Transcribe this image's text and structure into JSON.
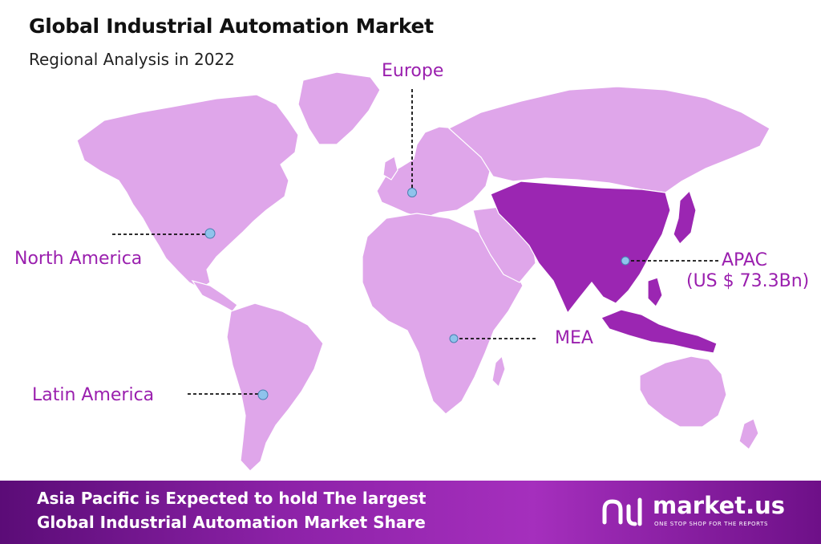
{
  "header": {
    "title": "Global Industrial Automation Market",
    "subtitle": "Regional Analysis in 2022"
  },
  "colors": {
    "land": "#dfa6ea",
    "highlight": "#9b26b2",
    "marker": "#8fc3ec",
    "label": "#9a1fae",
    "footer_bg": "#8d22a8"
  },
  "regions": {
    "europe": {
      "label": "Europe"
    },
    "north_america": {
      "label": "North America"
    },
    "apac": {
      "label": "APAC",
      "value": "(US $ 73.3Bn)"
    },
    "mea": {
      "label": "MEA"
    },
    "latin_america": {
      "label": "Latin America"
    }
  },
  "footer": {
    "line1": "Asia Pacific is Expected to hold The largest",
    "line2": "Global Industrial Automation Market Share"
  },
  "brand": {
    "name": "market.us",
    "tagline": "ONE STOP SHOP FOR THE REPORTS",
    "icon": "market-us-logo-icon"
  }
}
